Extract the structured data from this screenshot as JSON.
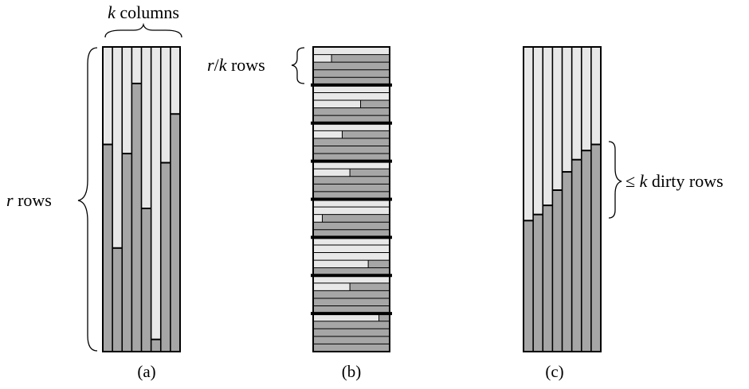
{
  "labels": {
    "k_var": "k",
    "k_columns_text": "columns",
    "r_var": "r",
    "r_rows_text": "rows",
    "rk_var_r": "r",
    "rk_slash": "/",
    "rk_var_k": "k",
    "rk_rows_text": "rows",
    "dirty_leq": "≤",
    "dirty_var": "k",
    "dirty_text": "dirty rows"
  },
  "captions": {
    "a": "(a)",
    "b": "(b)",
    "c": "(c)"
  },
  "colors": {
    "light": "#e8e8e8",
    "dark": "#a6a6a6",
    "stroke": "#000000"
  },
  "panel_a": {
    "columns": 8,
    "light_fraction_per_column": [
      0.32,
      0.66,
      0.35,
      0.12,
      0.53,
      0.96,
      0.38,
      0.22
    ]
  },
  "panel_b": {
    "rows": 40,
    "group_size": 5,
    "light_fraction_per_row": [
      1,
      0.24,
      0,
      0,
      0,
      1,
      1,
      0.62,
      0,
      0,
      1,
      0.38,
      0,
      0,
      0,
      1,
      0.48,
      0,
      0,
      0,
      1,
      1,
      0.12,
      0,
      0,
      1,
      1,
      1,
      0.72,
      0,
      1,
      0.48,
      0,
      0,
      0,
      0.86,
      0,
      0,
      0,
      0
    ]
  },
  "panel_c": {
    "columns": 8,
    "light_fraction_per_column": [
      0.57,
      0.55,
      0.52,
      0.47,
      0.41,
      0.37,
      0.34,
      0.32
    ]
  }
}
